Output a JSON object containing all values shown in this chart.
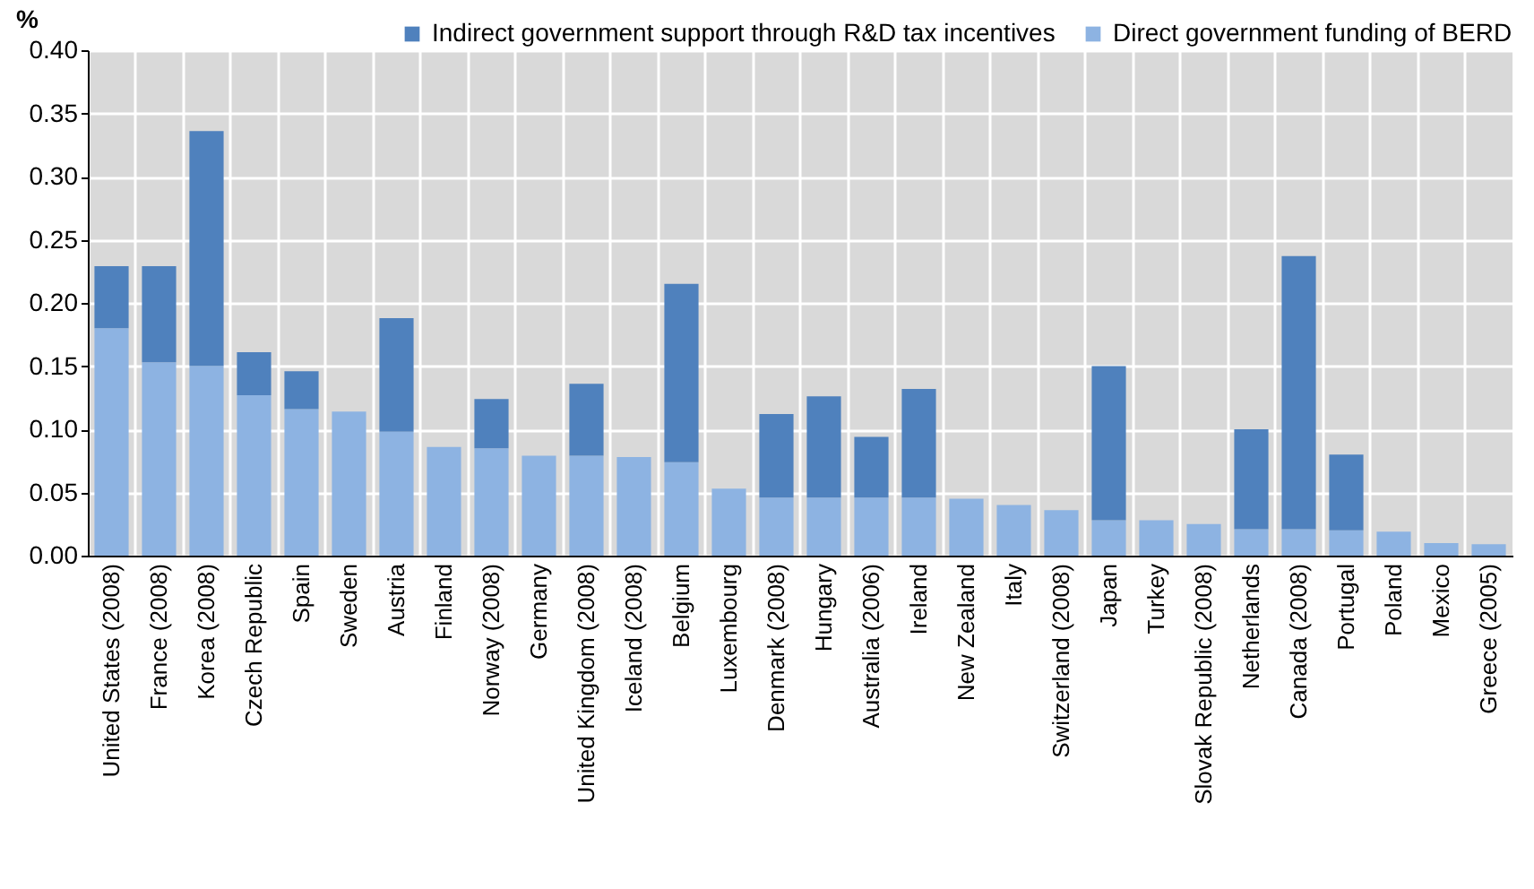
{
  "chart_data": {
    "type": "bar",
    "stacked": true,
    "ylabel": "%",
    "categories": [
      "United States (2008)",
      "France (2008)",
      "Korea (2008)",
      "Czech Republic",
      "Spain",
      "Sweden",
      "Austria",
      "Finland",
      "Norway (2008)",
      "Germany",
      "United Kingdom (2008)",
      "Iceland (2008)",
      "Belgium",
      "Luxembourg",
      "Denmark (2008)",
      "Hungary",
      "Australia (2006)",
      "Ireland",
      "New Zealand",
      "Italy",
      "Switzerland (2008)",
      "Japan",
      "Turkey",
      "Slovak Republic (2008)",
      "Netherlands",
      "Canada (2008)",
      "Portugal",
      "Poland",
      "Mexico",
      "Greece (2005)"
    ],
    "series": [
      {
        "name": "Direct government funding of BERD",
        "color": "#8db3e2",
        "values": [
          0.18,
          0.153,
          0.15,
          0.127,
          0.116,
          0.114,
          0.098,
          0.086,
          0.085,
          0.079,
          0.079,
          0.078,
          0.074,
          0.053,
          0.046,
          0.046,
          0.046,
          0.046,
          0.045,
          0.04,
          0.036,
          0.028,
          0.028,
          0.025,
          0.021,
          0.021,
          0.02,
          0.019,
          0.01,
          0.009
        ]
      },
      {
        "name": "Indirect government support through R&D tax incentives",
        "color": "#4f81bd",
        "values": [
          0.049,
          0.076,
          0.186,
          0.034,
          0.03,
          null,
          0.09,
          null,
          0.039,
          null,
          0.057,
          null,
          0.141,
          null,
          0.066,
          0.08,
          0.048,
          0.086,
          null,
          null,
          null,
          0.122,
          null,
          null,
          0.079,
          0.216,
          0.06,
          null,
          null,
          null
        ]
      }
    ],
    "ylim": [
      0,
      0.4
    ],
    "yticks": [
      {
        "value": 0,
        "label": "0.00"
      },
      {
        "value": 0.05,
        "label": "0.05"
      },
      {
        "value": 0.1,
        "label": "0.10"
      },
      {
        "value": 0.15,
        "label": "0.15"
      },
      {
        "value": 0.2,
        "label": "0.20"
      },
      {
        "value": 0.25,
        "label": "0.25"
      },
      {
        "value": 0.3,
        "label": "0.30"
      },
      {
        "value": 0.35,
        "label": "0.35"
      },
      {
        "value": 0.4,
        "label": "0.40"
      }
    ],
    "grid": true,
    "legend": "top right"
  }
}
